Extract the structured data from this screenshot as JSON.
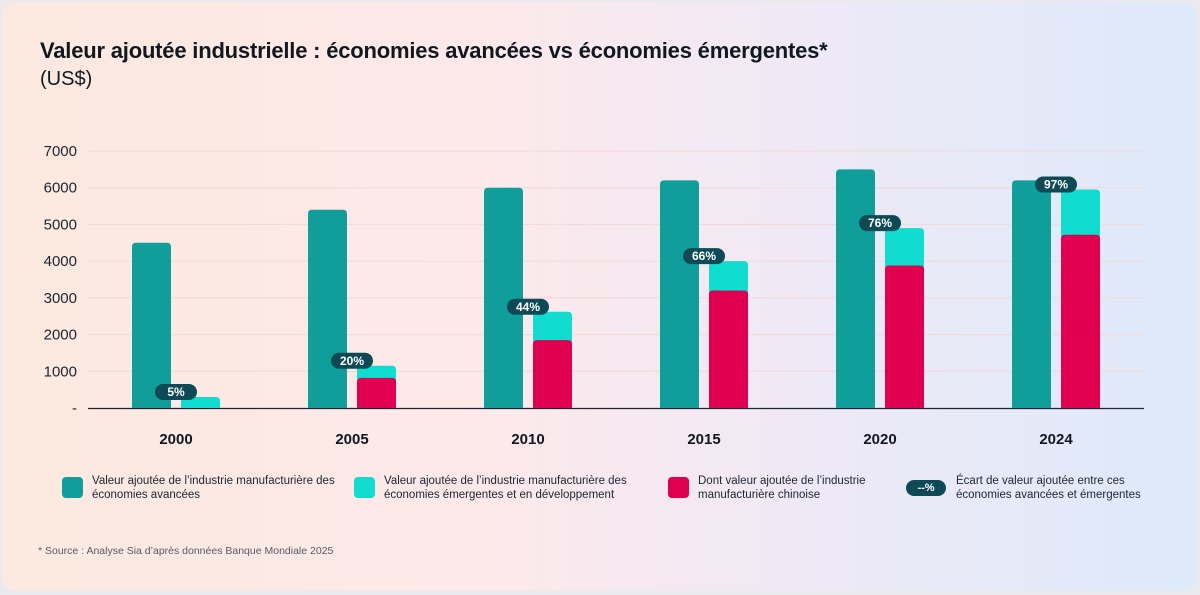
{
  "header": {
    "title": "Valeur ajoutée industrielle : économies avancées vs économies émergentes*",
    "subtitle": "(US$)"
  },
  "colors": {
    "advanced": "#0f9e9a",
    "emerging": "#10ddd0",
    "china": "#e0004f",
    "badge": "#0e4a55"
  },
  "chart_data": {
    "type": "bar",
    "title": "Valeur ajoutée industrielle : économies avancées vs économies émergentes*",
    "subtitle": "(US$)",
    "xlabel": "",
    "ylabel": "",
    "categories": [
      "2000",
      "2005",
      "2010",
      "2015",
      "2020",
      "2024"
    ],
    "y_ticks": [
      {
        "value": 0,
        "label": "-"
      },
      {
        "value": 1000,
        "label": "1000"
      },
      {
        "value": 2000,
        "label": "2000"
      },
      {
        "value": 3000,
        "label": "3000"
      },
      {
        "value": 4000,
        "label": "4000"
      },
      {
        "value": 5000,
        "label": "5000"
      },
      {
        "value": 6000,
        "label": "6000"
      },
      {
        "value": 7000,
        "label": "7000"
      }
    ],
    "ylim": [
      0,
      7000
    ],
    "grid": true,
    "series": [
      {
        "name": "Valeur ajoutée de l’industrie manufacturière des économies avancées",
        "values": [
          4500,
          5400,
          6000,
          6200,
          6500,
          6200
        ]
      },
      {
        "name": "Valeur ajoutée de l’industrie manufacturière des économies émergentes et en développement",
        "values": [
          300,
          1150,
          2620,
          4000,
          4900,
          5950
        ]
      },
      {
        "name": "Dont valeur ajoutée de l’industrie manufacturière chinoise",
        "values": [
          0,
          820,
          1850,
          3200,
          3880,
          4720
        ]
      }
    ],
    "gap_labels": [
      "5%",
      "20%",
      "44%",
      "66%",
      "76%",
      "97%"
    ],
    "legend": {
      "placement": "bottom",
      "items": [
        "Valeur ajoutée de l’industrie manufacturière des économies avancées",
        "Valeur ajoutée de l’industrie manufacturière des économies émergentes et en développement",
        "Dont valeur ajoutée de l’industrie manufacturière chinoise",
        "Écart de valeur ajoutée entre ces économies avancées et émergentes"
      ],
      "badge_sample": "--%"
    }
  },
  "source": "* Source : Analyse Sia d’après données Banque Mondiale 2025"
}
